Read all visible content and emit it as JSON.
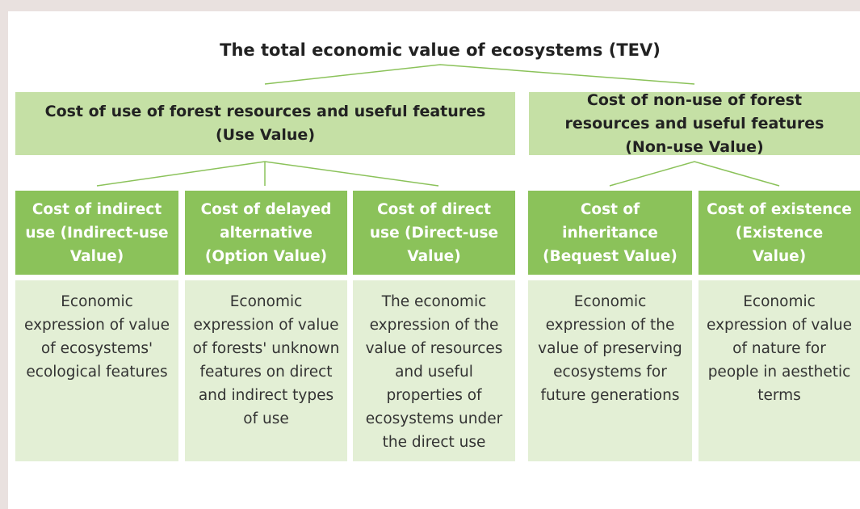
{
  "title": "The total economic value of ecosystems (TEV)",
  "groups": [
    {
      "label": "Cost of use of forest resources and useful features (Use Value)",
      "items": [
        {
          "label": "Cost of indirect use (Indirect-use Value)",
          "description": "Economic expression of value of ecosystems' ecological features"
        },
        {
          "label": "Cost of delayed alternative (Option Value)",
          "description": "Economic expression of value of forests' unknown features on direct and indirect types of use"
        },
        {
          "label": "Cost of direct use (Direct-use Value)",
          "description": "The economic expression of the value of resources and useful properties of ecosystems under the direct use"
        }
      ]
    },
    {
      "label": "Cost of non-use of forest resources and useful features (Non-use Value)",
      "items": [
        {
          "label": "Cost of inheritance (Bequest Value)",
          "description": "Economic expression of the value of preserving ecosystems for future generations"
        },
        {
          "label": "Cost of existence (Existence Value)",
          "description": "Economic expression of value of nature for people in aesthetic terms"
        }
      ]
    }
  ]
}
